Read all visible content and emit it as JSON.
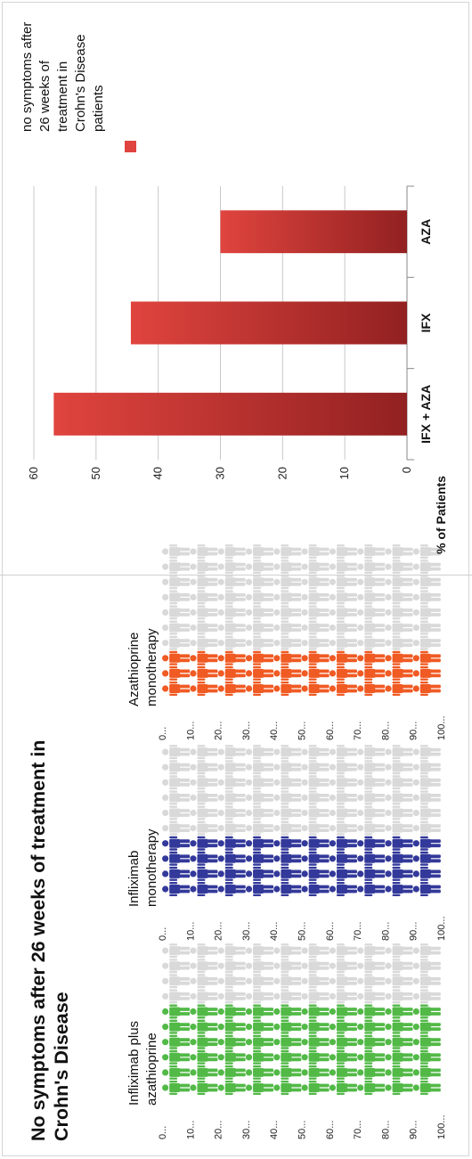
{
  "title_lines": [
    "No symptoms after 26 weeks of treatment in",
    "Crohn's Disease"
  ],
  "pictograph": {
    "row_labels": [
      "100...",
      "90...",
      "80...",
      "70...",
      "60...",
      "50...",
      "40...",
      "30...",
      "20...",
      "10...",
      "0..."
    ],
    "inactive_color": "#d9d9d9",
    "groups": [
      {
        "title_lines": [
          "Infliximab plus",
          "azathioprine"
        ],
        "percent": 57,
        "color": "#52b947"
      },
      {
        "title_lines": [
          "Infliximab",
          "monotherapy"
        ],
        "percent": 44,
        "color": "#33399a"
      },
      {
        "title_lines": [
          "Azathioprine",
          "monotherapy"
        ],
        "percent": 30,
        "color": "#f05a23"
      }
    ]
  },
  "chart_data": {
    "type": "bar",
    "orientation": "rotated -90deg (bars extend upward from the bottom of the page)",
    "categories": [
      "IFX + AZA",
      "IFX",
      "AZA"
    ],
    "series": [
      {
        "name": "no symptoms after 26 weeks of treatment in Crohn's Disease patients",
        "values": [
          56.8,
          44.4,
          30
        ]
      }
    ],
    "ylabel": "% of Patients",
    "ylim": [
      0,
      60
    ],
    "yticks": [
      0,
      10,
      20,
      30,
      40,
      50,
      60
    ],
    "grid": true,
    "bar_color_light": "#e0443e",
    "bar_color_dark": "#922121",
    "legend_lines": [
      "no symptoms after",
      "26 weeks of",
      "treatment in",
      "Crohn's Disease",
      "patients"
    ],
    "legend_placement": "right"
  }
}
